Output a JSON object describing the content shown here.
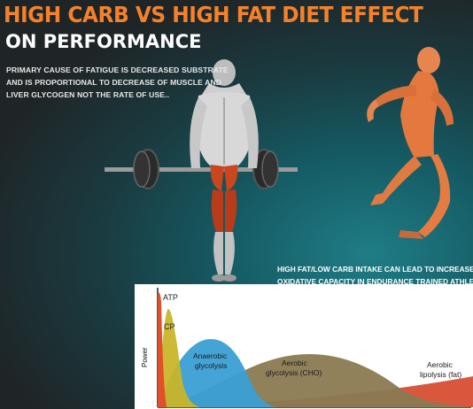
{
  "header": {
    "title": "HIGH CARB VS HIGH FAT DIET EFFECT",
    "subtitle": "ON PERFORMANCE"
  },
  "notes": {
    "left_lines": [
      "PRIMARY CAUSE OF FATIGUE IS DECREASED SUBSTRATE",
      "AND IS PROPORTIONAL TO DECREASE OF MUSCLE  AND",
      "LIVER GLYCOGEN NOT THE RATE OF USE.."
    ],
    "right_lines": [
      "HIGH FAT/LOW CARB INTAKE CAN LEAD TO INCREASED",
      "OXIDATIVE CAPACITY IN ENDURANCE TRAINED ATHLETES"
    ]
  },
  "illustrations": {
    "left": "deadlift-figure-icon",
    "right": "running-figure-icon"
  },
  "chart_data": {
    "type": "area",
    "ylabel": "Power",
    "xlabel": "",
    "series": [
      {
        "name": "ATP",
        "color": "#e0502a"
      },
      {
        "name": "CP",
        "color": "#c9b52a"
      },
      {
        "name": "Anaerobic glycolysis",
        "color": "#3a9fd4"
      },
      {
        "name": "Aerobic glycolysis (CHO)",
        "color": "#8a7a52"
      },
      {
        "name": "Aerobic lipolysis (fat)",
        "color": "#d64a2c"
      }
    ]
  },
  "colors": {
    "title_orange": "#f5822a",
    "background": "#1f2426",
    "teal": "#1f7d86"
  }
}
